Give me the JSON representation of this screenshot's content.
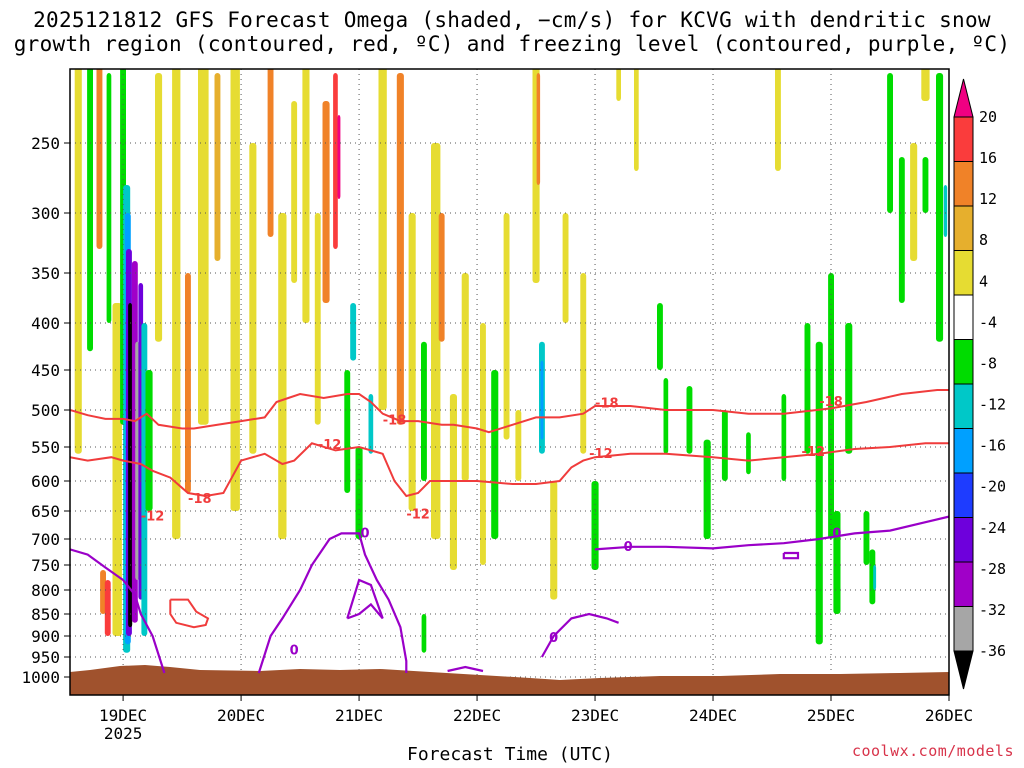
{
  "chart_data": {
    "type": "heatmap",
    "title_line1": "2025121812 GFS Forecast Omega (shaded, −cm/s) for KCVG with dendritic snow",
    "title_line2": "growth region (contoured, red, ºC) and freezing level (contoured, purple, ºC)",
    "xlabel": "Forecast Time (UTC)",
    "credit": "coolwx.com/models",
    "x_start_day": 18.55,
    "x_end_day": 26.0,
    "x_ticks": [
      {
        "day": 19,
        "label": "19DEC",
        "sub": "2025"
      },
      {
        "day": 20,
        "label": "20DEC"
      },
      {
        "day": 21,
        "label": "21DEC"
      },
      {
        "day": 22,
        "label": "22DEC"
      },
      {
        "day": 23,
        "label": "23DEC"
      },
      {
        "day": 24,
        "label": "24DEC"
      },
      {
        "day": 25,
        "label": "25DEC"
      },
      {
        "day": 26,
        "label": "26DEC"
      }
    ],
    "y_ticks": [
      {
        "p": 250,
        "label": "250"
      },
      {
        "p": 300,
        "label": "300"
      },
      {
        "p": 350,
        "label": "350"
      },
      {
        "p": 400,
        "label": "400"
      },
      {
        "p": 450,
        "label": "450"
      },
      {
        "p": 500,
        "label": "500"
      },
      {
        "p": 550,
        "label": "550"
      },
      {
        "p": 600,
        "label": "600"
      },
      {
        "p": 650,
        "label": "650"
      },
      {
        "p": 700,
        "label": "700"
      },
      {
        "p": 750,
        "label": "750"
      },
      {
        "p": 800,
        "label": "800"
      },
      {
        "p": 850,
        "label": "850"
      },
      {
        "p": 900,
        "label": "900"
      },
      {
        "p": 950,
        "label": "950"
      },
      {
        "p": 1000,
        "label": "1000"
      }
    ],
    "colorbar": {
      "colors": [
        "#000000",
        "#a6a6a6",
        "#a000c8",
        "#6e00dc",
        "#1e3cff",
        "#00a0ff",
        "#00c8c8",
        "#00dc00",
        "#ffffff",
        "#e6dc32",
        "#e6af2d",
        "#f08228",
        "#fa3c3c",
        "#f00082"
      ],
      "labels": [
        "-36",
        "-32",
        "-28",
        "-24",
        "-20",
        "-16",
        "-12",
        "-8",
        "-4",
        "4",
        "8",
        "12",
        "16",
        "20"
      ]
    },
    "contour_labels": {
      "dgz_a": "-18",
      "dgz_b": "-12",
      "freezing": "0"
    },
    "red_contours": [
      {
        "name": "-18",
        "points": [
          [
            18.55,
            500
          ],
          [
            18.7,
            507
          ],
          [
            18.85,
            512
          ],
          [
            19.0,
            512
          ],
          [
            19.1,
            515
          ],
          [
            19.2,
            505
          ],
          [
            19.3,
            520
          ],
          [
            19.5,
            525
          ],
          [
            19.6,
            525
          ],
          [
            19.8,
            520
          ],
          [
            20.0,
            515
          ],
          [
            20.2,
            510
          ],
          [
            20.3,
            490
          ],
          [
            20.4,
            485
          ],
          [
            20.5,
            480
          ],
          [
            20.7,
            485
          ],
          [
            20.9,
            480
          ],
          [
            21.0,
            480
          ],
          [
            21.1,
            490
          ],
          [
            21.2,
            505
          ],
          [
            21.35,
            515
          ],
          [
            21.5,
            515
          ],
          [
            21.7,
            520
          ],
          [
            21.8,
            520
          ],
          [
            22.0,
            525
          ],
          [
            22.1,
            530
          ],
          [
            22.3,
            520
          ],
          [
            22.5,
            510
          ],
          [
            22.7,
            510
          ],
          [
            22.9,
            505
          ],
          [
            23.0,
            495
          ],
          [
            23.3,
            495
          ],
          [
            23.6,
            500
          ],
          [
            24.0,
            500
          ],
          [
            24.3,
            505
          ],
          [
            24.6,
            505
          ],
          [
            25.0,
            498
          ],
          [
            25.3,
            490
          ],
          [
            25.6,
            480
          ],
          [
            25.9,
            475
          ],
          [
            26.0,
            475
          ]
        ]
      },
      {
        "name": "-12",
        "points": [
          [
            18.55,
            565
          ],
          [
            18.7,
            570
          ],
          [
            18.9,
            565
          ],
          [
            19.0,
            570
          ],
          [
            19.15,
            575
          ],
          [
            19.25,
            585
          ],
          [
            19.4,
            595
          ],
          [
            19.55,
            620
          ],
          [
            19.7,
            625
          ],
          [
            19.85,
            620
          ],
          [
            20.0,
            570
          ],
          [
            20.2,
            560
          ],
          [
            20.35,
            575
          ],
          [
            20.45,
            570
          ],
          [
            20.6,
            545
          ],
          [
            20.8,
            555
          ],
          [
            21.0,
            550
          ],
          [
            21.2,
            560
          ],
          [
            21.3,
            600
          ],
          [
            21.4,
            625
          ],
          [
            21.5,
            620
          ],
          [
            21.6,
            600
          ],
          [
            21.8,
            600
          ],
          [
            22.0,
            600
          ],
          [
            22.3,
            605
          ],
          [
            22.5,
            605
          ],
          [
            22.7,
            600
          ],
          [
            22.8,
            580
          ],
          [
            22.9,
            570
          ],
          [
            23.0,
            565
          ],
          [
            23.3,
            560
          ],
          [
            23.6,
            560
          ],
          [
            24.0,
            565
          ],
          [
            24.3,
            570
          ],
          [
            24.6,
            565
          ],
          [
            24.9,
            560
          ],
          [
            25.2,
            553
          ],
          [
            25.5,
            550
          ],
          [
            25.8,
            545
          ],
          [
            26.0,
            545
          ]
        ]
      },
      {
        "name": "-12",
        "points": [
          [
            19.4,
            820
          ],
          [
            19.55,
            820
          ],
          [
            19.62,
            845
          ],
          [
            19.72,
            860
          ],
          [
            19.7,
            875
          ],
          [
            19.6,
            880
          ],
          [
            19.45,
            870
          ],
          [
            19.4,
            850
          ],
          [
            19.4,
            820
          ]
        ]
      }
    ],
    "purple_contours": [
      {
        "name": "0",
        "points": [
          [
            18.55,
            720
          ],
          [
            18.7,
            730
          ],
          [
            18.85,
            755
          ],
          [
            19.0,
            780
          ],
          [
            19.1,
            810
          ],
          [
            19.15,
            850
          ],
          [
            19.25,
            900
          ],
          [
            19.35,
            990
          ]
        ]
      },
      {
        "name": "0",
        "points": [
          [
            20.15,
            990
          ],
          [
            20.25,
            900
          ],
          [
            20.35,
            860
          ],
          [
            20.5,
            800
          ],
          [
            20.6,
            750
          ],
          [
            20.75,
            700
          ],
          [
            20.85,
            690
          ],
          [
            21.0,
            690
          ],
          [
            21.05,
            730
          ],
          [
            21.15,
            780
          ],
          [
            21.25,
            820
          ],
          [
            21.35,
            880
          ],
          [
            21.4,
            960
          ],
          [
            21.4,
            990
          ]
        ]
      },
      {
        "name": "0",
        "points": [
          [
            20.9,
            860
          ],
          [
            21.0,
            780
          ],
          [
            21.1,
            790
          ],
          [
            21.2,
            860
          ],
          [
            21.1,
            830
          ],
          [
            21.0,
            850
          ],
          [
            20.9,
            860
          ]
        ]
      },
      {
        "name": "0",
        "points": [
          [
            21.75,
            985
          ],
          [
            21.9,
            975
          ],
          [
            22.05,
            985
          ]
        ]
      },
      {
        "name": "0",
        "points": [
          [
            22.55,
            950
          ],
          [
            22.65,
            900
          ],
          [
            22.8,
            860
          ],
          [
            22.95,
            850
          ],
          [
            23.1,
            860
          ],
          [
            23.2,
            870
          ]
        ]
      },
      {
        "name": "0",
        "points": [
          [
            23.0,
            720
          ],
          [
            23.3,
            715
          ],
          [
            23.6,
            715
          ],
          [
            24.0,
            718
          ],
          [
            24.3,
            712
          ],
          [
            24.6,
            708
          ],
          [
            24.9,
            700
          ],
          [
            25.2,
            690
          ],
          [
            25.5,
            685
          ],
          [
            25.8,
            670
          ],
          [
            26.0,
            660
          ]
        ]
      },
      {
        "name": "0",
        "points": [
          [
            24.6,
            727
          ],
          [
            24.72,
            727
          ],
          [
            24.72,
            737
          ],
          [
            24.6,
            737
          ],
          [
            24.6,
            727
          ]
        ]
      }
    ]
  }
}
